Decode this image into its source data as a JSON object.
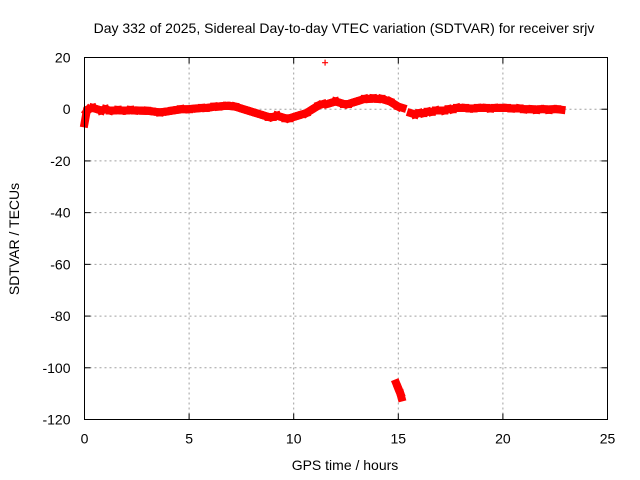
{
  "chart_data": {
    "type": "scatter",
    "title": "Day 332 of 2025, Sidereal Day-to-day VTEC variation (SDTVAR) for receiver srjv",
    "xlabel": "GPS time / hours",
    "ylabel": "SDTVAR / TECUs",
    "xlim": [
      0,
      25
    ],
    "ylim": [
      -120,
      20
    ],
    "xticks": [
      0,
      5,
      10,
      15,
      20,
      25
    ],
    "yticks": [
      20,
      0,
      -20,
      -40,
      -60,
      -80,
      -100,
      -120
    ],
    "grid": true,
    "marker": "plus",
    "series": [
      {
        "color": "#ff0000",
        "points": [
          [
            0.0,
            -5.5
          ],
          [
            0.1,
            -1.0
          ],
          [
            0.2,
            0.0
          ],
          [
            0.4,
            0.5
          ],
          [
            0.6,
            0.0
          ],
          [
            0.8,
            -0.5
          ],
          [
            1.0,
            0.0
          ],
          [
            1.2,
            -0.5
          ],
          [
            1.4,
            -0.5
          ],
          [
            1.6,
            -0.3
          ],
          [
            1.8,
            -0.5
          ],
          [
            2.0,
            -0.5
          ],
          [
            2.2,
            -0.3
          ],
          [
            2.4,
            -0.5
          ],
          [
            2.6,
            -0.5
          ],
          [
            2.8,
            -0.6
          ],
          [
            3.0,
            -0.6
          ],
          [
            3.2,
            -0.8
          ],
          [
            3.4,
            -1.0
          ],
          [
            3.6,
            -1.2
          ],
          [
            3.8,
            -1.0
          ],
          [
            4.0,
            -0.8
          ],
          [
            4.2,
            -0.5
          ],
          [
            4.4,
            -0.3
          ],
          [
            4.6,
            0.0
          ],
          [
            4.8,
            0.0
          ],
          [
            5.0,
            0.0
          ],
          [
            5.2,
            0.2
          ],
          [
            5.4,
            0.3
          ],
          [
            5.6,
            0.5
          ],
          [
            5.8,
            0.5
          ],
          [
            6.0,
            0.7
          ],
          [
            6.2,
            1.0
          ],
          [
            6.4,
            1.0
          ],
          [
            6.6,
            1.2
          ],
          [
            6.8,
            1.3
          ],
          [
            7.0,
            1.2
          ],
          [
            7.2,
            1.0
          ],
          [
            7.4,
            0.5
          ],
          [
            7.6,
            0.0
          ],
          [
            7.8,
            -0.5
          ],
          [
            8.0,
            -1.0
          ],
          [
            8.2,
            -1.5
          ],
          [
            8.4,
            -2.0
          ],
          [
            8.6,
            -2.5
          ],
          [
            8.8,
            -3.0
          ],
          [
            9.0,
            -3.0
          ],
          [
            9.2,
            -2.5
          ],
          [
            9.4,
            -3.0
          ],
          [
            9.6,
            -3.5
          ],
          [
            9.8,
            -3.5
          ],
          [
            10.0,
            -3.0
          ],
          [
            10.2,
            -2.5
          ],
          [
            10.4,
            -2.0
          ],
          [
            10.6,
            -1.5
          ],
          [
            10.8,
            -0.5
          ],
          [
            11.0,
            0.5
          ],
          [
            11.2,
            1.5
          ],
          [
            11.4,
            2.0
          ],
          [
            11.5,
            18.0
          ],
          [
            11.6,
            2.0
          ],
          [
            11.8,
            2.5
          ],
          [
            12.0,
            3.0
          ],
          [
            12.2,
            2.5
          ],
          [
            12.4,
            2.0
          ],
          [
            12.6,
            2.0
          ],
          [
            12.8,
            2.5
          ],
          [
            13.0,
            3.0
          ],
          [
            13.2,
            3.5
          ],
          [
            13.4,
            4.0
          ],
          [
            13.6,
            4.0
          ],
          [
            13.8,
            4.2
          ],
          [
            14.0,
            4.0
          ],
          [
            14.2,
            4.0
          ],
          [
            14.4,
            3.5
          ],
          [
            14.6,
            3.0
          ],
          [
            14.8,
            2.0
          ],
          [
            15.0,
            1.0
          ],
          [
            15.2,
            0.5
          ],
          [
            14.9,
            -106.0
          ],
          [
            15.0,
            -108.0
          ],
          [
            15.1,
            -110.0
          ],
          [
            15.15,
            -111.5
          ],
          [
            15.6,
            -1.5
          ],
          [
            15.8,
            -2.0
          ],
          [
            16.0,
            -1.5
          ],
          [
            16.2,
            -1.5
          ],
          [
            16.4,
            -1.0
          ],
          [
            16.6,
            -1.0
          ],
          [
            16.8,
            -0.5
          ],
          [
            17.0,
            -0.5
          ],
          [
            17.2,
            -0.5
          ],
          [
            17.4,
            0.0
          ],
          [
            17.6,
            0.0
          ],
          [
            17.8,
            0.5
          ],
          [
            18.0,
            0.5
          ],
          [
            18.2,
            0.5
          ],
          [
            18.4,
            0.3
          ],
          [
            18.6,
            0.3
          ],
          [
            18.8,
            0.5
          ],
          [
            19.0,
            0.5
          ],
          [
            19.2,
            0.5
          ],
          [
            19.4,
            0.3
          ],
          [
            19.6,
            0.5
          ],
          [
            19.8,
            0.5
          ],
          [
            20.0,
            0.5
          ],
          [
            20.2,
            0.5
          ],
          [
            20.4,
            0.3
          ],
          [
            20.6,
            0.3
          ],
          [
            20.8,
            0.3
          ],
          [
            21.0,
            0.0
          ],
          [
            21.2,
            0.0
          ],
          [
            21.4,
            0.0
          ],
          [
            21.6,
            -0.2
          ],
          [
            21.8,
            0.0
          ],
          [
            22.0,
            0.0
          ],
          [
            22.2,
            -0.2
          ],
          [
            22.4,
            0.0
          ],
          [
            22.6,
            0.0
          ],
          [
            22.8,
            -0.2
          ]
        ]
      }
    ]
  }
}
